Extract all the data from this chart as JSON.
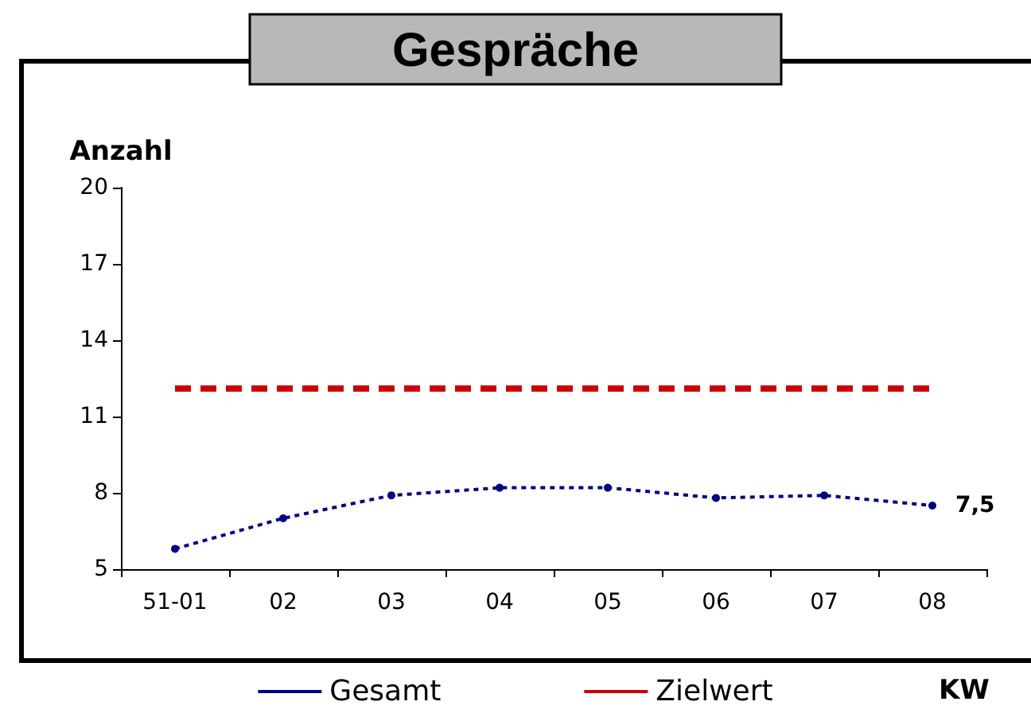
{
  "chart_data": {
    "type": "line",
    "title": "Gespräche",
    "ylabel": "Anzahl",
    "xlabel": "KW",
    "categories": [
      "51-01",
      "02",
      "03",
      "04",
      "05",
      "06",
      "07",
      "08"
    ],
    "series": [
      {
        "name": "Gesamt",
        "color": "#000080",
        "values": [
          5.8,
          7.0,
          7.9,
          8.2,
          8.2,
          7.8,
          7.9,
          7.5
        ],
        "value_labels": [
          null,
          null,
          null,
          null,
          null,
          null,
          null,
          "7,5"
        ],
        "line_style": "dotted",
        "marker": "circle"
      },
      {
        "name": "Zielwert",
        "color": "#cc0000",
        "values": [
          12.1,
          12.1,
          12.1,
          12.1,
          12.1,
          12.1,
          12.1,
          12.1
        ],
        "line_style": "dashed",
        "marker": "none"
      }
    ],
    "ylim": [
      5,
      20
    ],
    "yticks": [
      5,
      8,
      11,
      14,
      17,
      20
    ],
    "grid": false,
    "legend": "bottom"
  }
}
